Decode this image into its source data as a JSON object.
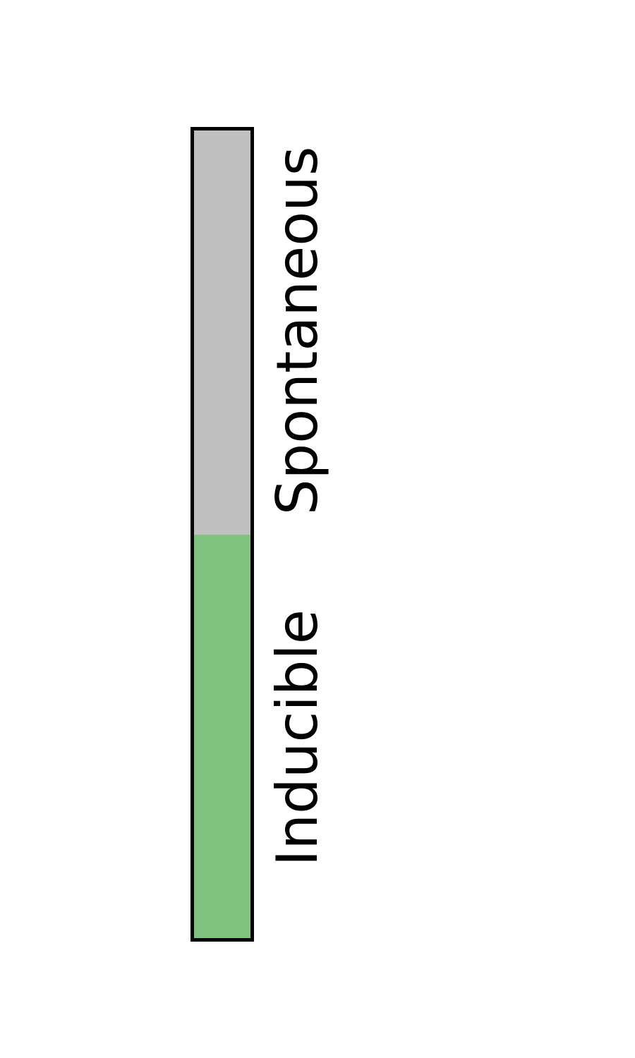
{
  "legend": {
    "segments": [
      {
        "label": "Spontaneous",
        "color": "#c0c0c0"
      },
      {
        "label": "Inducible",
        "color": "#80c280"
      }
    ],
    "border_color": "#000000"
  }
}
